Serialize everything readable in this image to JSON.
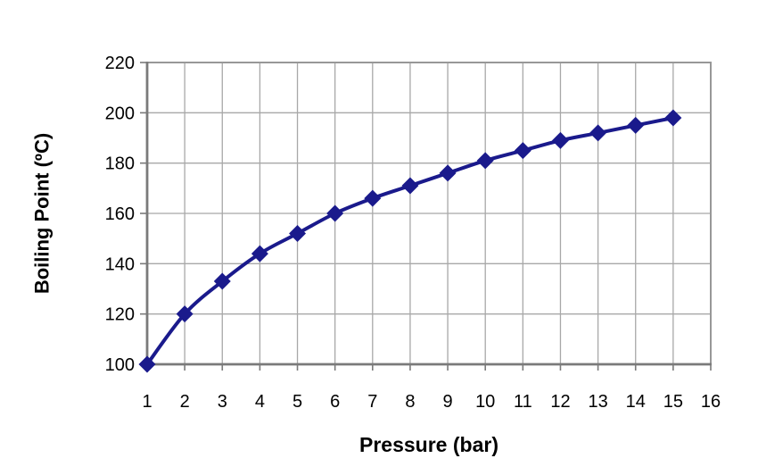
{
  "figure": {
    "background": "#ffffff"
  },
  "chart_data": {
    "type": "line",
    "title": "",
    "xlabel": "Pressure (bar)",
    "ylabel": "Boiling Point (ºC)",
    "x": [
      1,
      2,
      3,
      4,
      5,
      6,
      7,
      8,
      9,
      10,
      11,
      12,
      13,
      14,
      15
    ],
    "series": [
      {
        "values": [
          100,
          120,
          133,
          144,
          152,
          160,
          166,
          171,
          176,
          181,
          185,
          189,
          192,
          195,
          198
        ],
        "color": "#1a1a8c",
        "marker": "diamond"
      }
    ],
    "xlim": [
      1,
      16
    ],
    "ylim": [
      100,
      220
    ],
    "x_ticks": [
      1,
      2,
      3,
      4,
      5,
      6,
      7,
      8,
      9,
      10,
      11,
      12,
      13,
      14,
      15,
      16
    ],
    "y_ticks": [
      100,
      120,
      140,
      160,
      180,
      200,
      220
    ],
    "grid": true,
    "legend": false,
    "grid_color": "#a8a8a8",
    "plot_border_color": "#989898",
    "axis_color": "#7a7a7a",
    "text_color": "#000000"
  }
}
